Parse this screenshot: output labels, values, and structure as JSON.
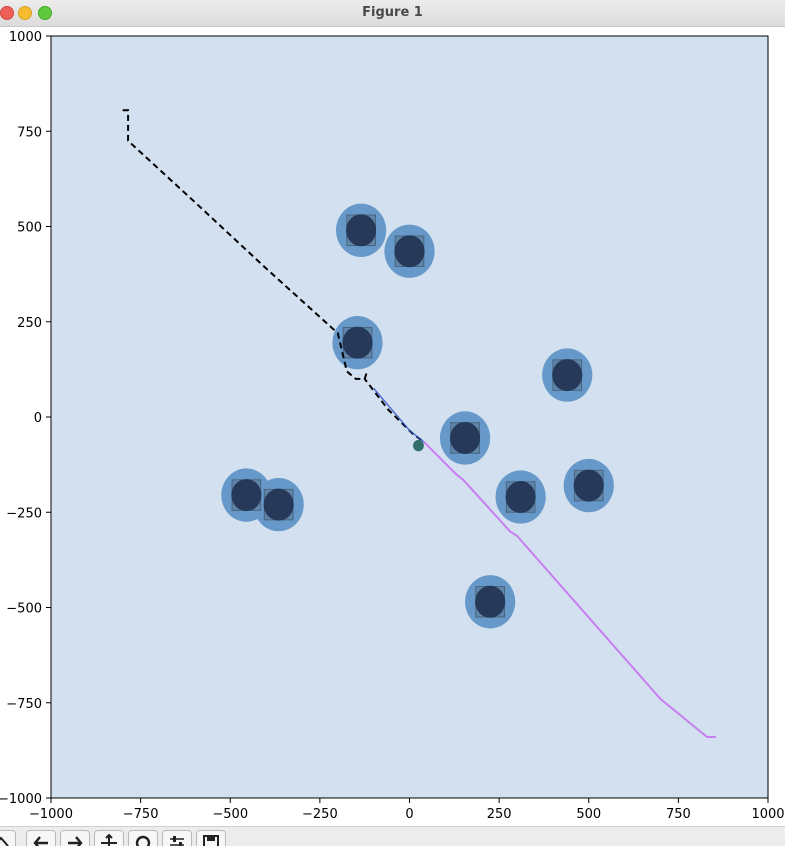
{
  "window": {
    "title": "Figure 1"
  },
  "colors": {
    "plot_bg": "#d3e0ef",
    "obstacle_halo": "#6699c9",
    "obstacle_square": "#5a7590",
    "obstacle_core": "#223352",
    "path_dashed": "#000000",
    "path_blue": "#3355cc",
    "trajectory": "#c77ef0",
    "robot": "#2f6e6a"
  },
  "toolbar": {
    "buttons": [
      {
        "name": "home-button",
        "icon": "home-icon"
      },
      {
        "name": "back-button",
        "icon": "arrow-left-icon"
      },
      {
        "name": "forward-button",
        "icon": "arrow-right-icon"
      },
      {
        "name": "pan-button",
        "icon": "move-icon"
      },
      {
        "name": "zoom-button",
        "icon": "magnifier-icon"
      },
      {
        "name": "configure-button",
        "icon": "sliders-icon"
      },
      {
        "name": "save-button",
        "icon": "floppy-disk-icon"
      }
    ]
  },
  "chart_data": {
    "type": "scatter",
    "title": "",
    "xlabel": "",
    "ylabel": "",
    "xlim": [
      -1000,
      1000
    ],
    "ylim": [
      -1000,
      1000
    ],
    "grid": false,
    "x_ticks": [
      -1000,
      -750,
      -500,
      -250,
      0,
      250,
      500,
      750,
      1000
    ],
    "x_tick_labels": [
      "−1000",
      "−750",
      "−500",
      "−250",
      "0",
      "250",
      "500",
      "750",
      "1000"
    ],
    "y_ticks": [
      1000,
      750,
      500,
      250,
      0,
      -250,
      -500,
      -750,
      -1000
    ],
    "y_tick_labels": [
      "1000",
      "750",
      "500",
      "250",
      "0",
      "−250",
      "−500",
      "−750",
      "−1000"
    ],
    "obstacles": [
      {
        "x": -135,
        "y": 490
      },
      {
        "x": 0,
        "y": 435
      },
      {
        "x": -145,
        "y": 195
      },
      {
        "x": 440,
        "y": 110
      },
      {
        "x": 155,
        "y": -55
      },
      {
        "x": -455,
        "y": -205
      },
      {
        "x": -365,
        "y": -230
      },
      {
        "x": 310,
        "y": -210
      },
      {
        "x": 500,
        "y": -180
      },
      {
        "x": 225,
        "y": -485
      }
    ],
    "obstacle_halo_radius": 70,
    "obstacle_core_radius": 42,
    "obstacle_square_half": 40,
    "series": [
      {
        "name": "planned path",
        "style": "dashed",
        "points": [
          [
            -800,
            805
          ],
          [
            -785,
            805
          ],
          [
            -785,
            725
          ],
          [
            -600,
            565
          ],
          [
            -400,
            390
          ],
          [
            -200,
            220
          ],
          [
            -175,
            120
          ],
          [
            -150,
            100
          ],
          [
            -125,
            100
          ],
          [
            -120,
            115
          ],
          [
            -125,
            100
          ],
          [
            -60,
            20
          ],
          [
            10,
            -45
          ],
          [
            40,
            -65
          ]
        ]
      },
      {
        "name": "local path",
        "style": "solid-blue",
        "points": [
          [
            -100,
            75
          ],
          [
            0,
            -35
          ],
          [
            40,
            -65
          ]
        ]
      },
      {
        "name": "trajectory",
        "style": "solid",
        "points": [
          [
            40,
            -65
          ],
          [
            130,
            -150
          ],
          [
            150,
            -165
          ],
          [
            280,
            -300
          ],
          [
            300,
            -312
          ],
          [
            700,
            -740
          ],
          [
            830,
            -840
          ],
          [
            850,
            -840
          ],
          [
            855,
            -838
          ]
        ]
      }
    ],
    "robot": {
      "x": 25,
      "y": -75,
      "radius": 15
    }
  }
}
